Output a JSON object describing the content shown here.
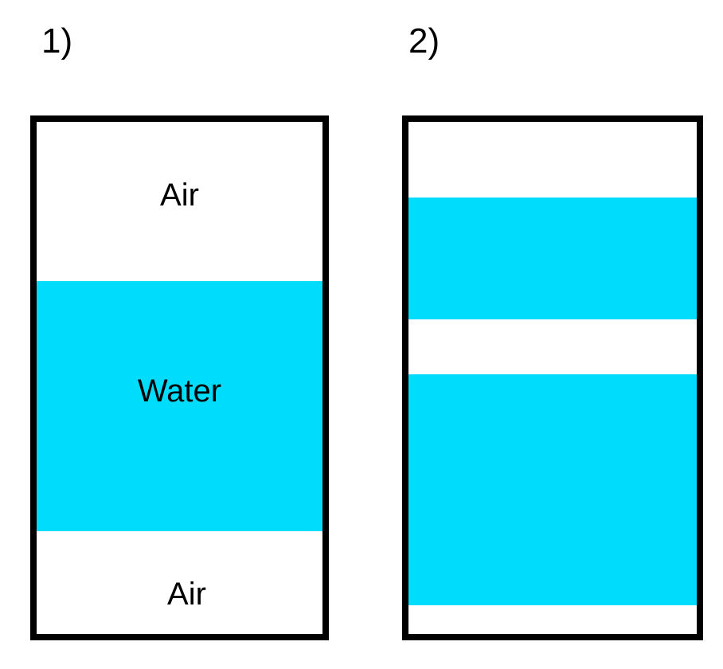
{
  "panels": [
    {
      "label": "1)",
      "layers": [
        {
          "text": "Air"
        },
        {
          "text": "Water"
        },
        {
          "text": "Air"
        }
      ]
    },
    {
      "label": "2)"
    }
  ],
  "colors": {
    "water": "#00dcfc",
    "air": "#ffffff",
    "border": "#000000"
  }
}
